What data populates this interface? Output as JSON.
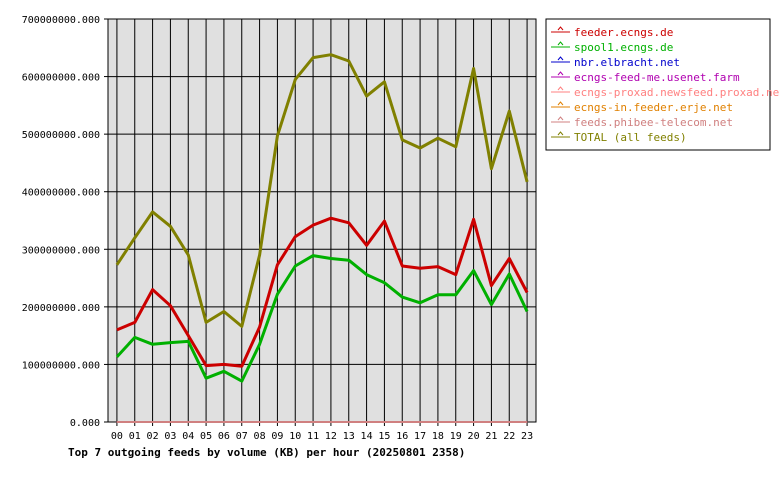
{
  "chart_data": {
    "type": "line",
    "title": "Top 7 outgoing feeds by volume (KB) per hour (20250801 2358)",
    "x": [
      "00",
      "01",
      "02",
      "03",
      "04",
      "05",
      "06",
      "07",
      "08",
      "09",
      "10",
      "11",
      "12",
      "13",
      "14",
      "15",
      "16",
      "17",
      "18",
      "19",
      "20",
      "21",
      "22",
      "23"
    ],
    "ylim": [
      0,
      700000000
    ],
    "yticks": [
      "0.000",
      "100000000.000",
      "200000000.000",
      "300000000.000",
      "400000000.000",
      "500000000.000",
      "600000000.000",
      "700000000.000"
    ],
    "grid": true,
    "legend_position": "top-right",
    "series": [
      {
        "name": "feeder.ecngs.de",
        "color": "#cc0000",
        "values": [
          160000000,
          173000000,
          230000000,
          202000000,
          150000000,
          98000000,
          100000000,
          97000000,
          165000000,
          273000000,
          322000000,
          342000000,
          354000000,
          346000000,
          307000000,
          349000000,
          271000000,
          267000000,
          270000000,
          256000000,
          352000000,
          237000000,
          284000000,
          225000000
        ]
      },
      {
        "name": "spool1.ecngs.de",
        "color": "#00b000",
        "values": [
          113000000,
          147000000,
          135000000,
          138000000,
          140000000,
          76000000,
          88000000,
          71000000,
          135000000,
          222000000,
          271000000,
          289000000,
          284000000,
          281000000,
          256000000,
          242000000,
          217000000,
          207000000,
          221000000,
          221000000,
          263000000,
          204000000,
          257000000,
          192000000
        ]
      },
      {
        "name": "nbr.elbracht.net",
        "color": "#0000cc",
        "values": [
          0,
          0,
          0,
          0,
          0,
          0,
          0,
          0,
          0,
          0,
          0,
          0,
          0,
          0,
          0,
          0,
          0,
          0,
          0,
          0,
          0,
          0,
          0,
          0
        ]
      },
      {
        "name": "ecngs-feed-me.usenet.farm",
        "color": "#b000b0",
        "values": [
          0,
          0,
          0,
          0,
          0,
          0,
          0,
          0,
          0,
          0,
          0,
          0,
          0,
          0,
          0,
          0,
          0,
          0,
          0,
          0,
          0,
          0,
          0,
          0
        ]
      },
      {
        "name": "ecngs-proxad.newsfeed.proxad.net",
        "color": "#ff8080",
        "values": [
          0,
          0,
          0,
          0,
          0,
          0,
          0,
          0,
          0,
          0,
          0,
          0,
          0,
          0,
          0,
          0,
          0,
          0,
          0,
          0,
          0,
          0,
          0,
          0
        ]
      },
      {
        "name": "ecngs-in.feeder.erje.net",
        "color": "#e08000",
        "values": [
          0,
          0,
          0,
          0,
          0,
          0,
          0,
          0,
          0,
          0,
          0,
          0,
          0,
          0,
          0,
          0,
          0,
          0,
          0,
          0,
          0,
          0,
          0,
          0
        ]
      },
      {
        "name": "feeds.phibee-telecom.net",
        "color": "#d08080",
        "values": [
          0,
          0,
          0,
          0,
          0,
          0,
          0,
          0,
          0,
          0,
          0,
          0,
          0,
          0,
          0,
          0,
          0,
          0,
          0,
          0,
          0,
          0,
          0,
          0
        ]
      },
      {
        "name": "TOTAL (all feeds)",
        "color": "#808000",
        "values": [
          273000000,
          320000000,
          365000000,
          340000000,
          290000000,
          173000000,
          192000000,
          166000000,
          290000000,
          497000000,
          595000000,
          633000000,
          638000000,
          627000000,
          566000000,
          591000000,
          490000000,
          476000000,
          493000000,
          478000000,
          614000000,
          440000000,
          540000000,
          417000000
        ]
      }
    ]
  }
}
